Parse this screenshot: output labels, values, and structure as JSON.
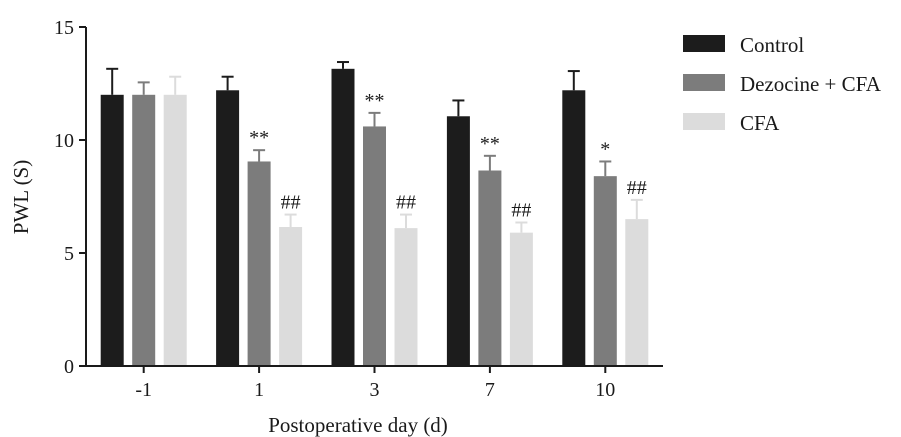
{
  "chart_data": {
    "type": "bar",
    "title": "",
    "xlabel": "Postoperative day (d)",
    "ylabel": "PWL (S)",
    "ylim": [
      0,
      15
    ],
    "yticks": [
      0,
      5,
      10,
      15
    ],
    "categories": [
      "-1",
      "1",
      "3",
      "7",
      "10"
    ],
    "legend_position": "right",
    "series": [
      {
        "name": "Control",
        "color": "#1c1c1c",
        "values": [
          12.0,
          12.2,
          13.15,
          11.05,
          12.2
        ],
        "errors": [
          1.15,
          0.6,
          0.3,
          0.7,
          0.85
        ],
        "annotations": [
          "",
          "",
          "",
          "",
          ""
        ]
      },
      {
        "name": "Dezocine + CFA",
        "color": "#7c7c7c",
        "values": [
          12.0,
          9.05,
          10.6,
          8.65,
          8.4
        ],
        "errors": [
          0.55,
          0.5,
          0.6,
          0.65,
          0.65
        ],
        "annotations": [
          "",
          "**",
          "**",
          "**",
          "*"
        ]
      },
      {
        "name": "CFA",
        "color": "#dcdcdc",
        "values": [
          12.0,
          6.15,
          6.1,
          5.9,
          6.5
        ],
        "errors": [
          0.8,
          0.55,
          0.6,
          0.45,
          0.85
        ],
        "annotations": [
          "",
          "##",
          "##",
          "##",
          "##"
        ]
      }
    ]
  }
}
